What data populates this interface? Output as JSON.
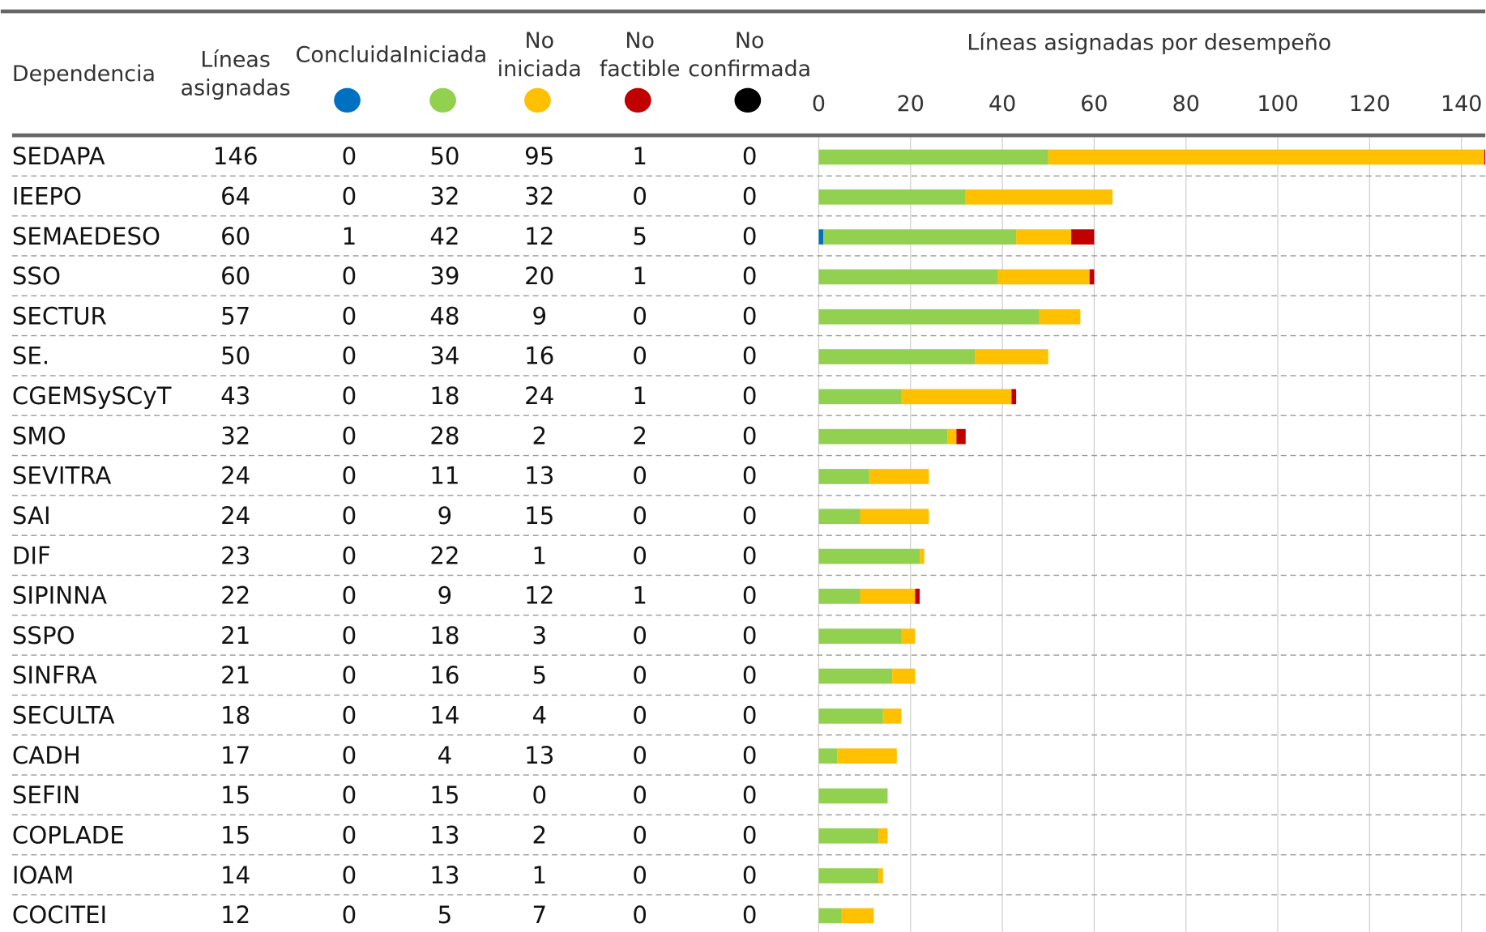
{
  "table": {
    "headers": [
      [
        "Dependencia"
      ],
      [
        "Líneas",
        "asignadas"
      ],
      [
        "Concluida"
      ],
      [
        "Iniciada"
      ],
      [
        "No",
        "iniciada"
      ],
      [
        "No",
        "factible"
      ],
      [
        "No",
        "confirmada"
      ]
    ],
    "status_colors": [
      "#0070c0",
      "#92d050",
      "#ffc000",
      "#c00000",
      "#000000"
    ],
    "rows": [
      [
        "SEDAPA",
        146,
        0,
        50,
        95,
        1,
        0
      ],
      [
        "IEEPO",
        64,
        0,
        32,
        32,
        0,
        0
      ],
      [
        "SEMAEDESO",
        60,
        1,
        42,
        12,
        5,
        0
      ],
      [
        "SSO",
        60,
        0,
        39,
        20,
        1,
        0
      ],
      [
        "SECTUR",
        57,
        0,
        48,
        9,
        0,
        0
      ],
      [
        "SE.",
        50,
        0,
        34,
        16,
        0,
        0
      ],
      [
        "CGEMSySCyT",
        43,
        0,
        18,
        24,
        1,
        0
      ],
      [
        "SMO",
        32,
        0,
        28,
        2,
        2,
        0
      ],
      [
        "SEVITRA",
        24,
        0,
        11,
        13,
        0,
        0
      ],
      [
        "SAI",
        24,
        0,
        9,
        15,
        0,
        0
      ],
      [
        "DIF",
        23,
        0,
        22,
        1,
        0,
        0
      ],
      [
        "SIPINNA",
        22,
        0,
        9,
        12,
        1,
        0
      ],
      [
        "SSPO",
        21,
        0,
        18,
        3,
        0,
        0
      ],
      [
        "SINFRA",
        21,
        0,
        16,
        5,
        0,
        0
      ],
      [
        "SECULTA",
        18,
        0,
        14,
        4,
        0,
        0
      ],
      [
        "CADH",
        17,
        0,
        4,
        13,
        0,
        0
      ],
      [
        "SEFIN",
        15,
        0,
        15,
        0,
        0,
        0
      ],
      [
        "COPLADE",
        15,
        0,
        13,
        2,
        0,
        0
      ],
      [
        "IOAM",
        14,
        0,
        13,
        1,
        0,
        0
      ],
      [
        "COCITEI",
        12,
        0,
        5,
        7,
        0,
        0
      ]
    ]
  },
  "chart": {
    "type": "stacked-bar",
    "title": "Líneas asignadas por desempeño",
    "xlim": [
      0,
      145.2
    ],
    "xticks": [
      0,
      20,
      40,
      60,
      80,
      100,
      120,
      140
    ],
    "grid": true
  }
}
